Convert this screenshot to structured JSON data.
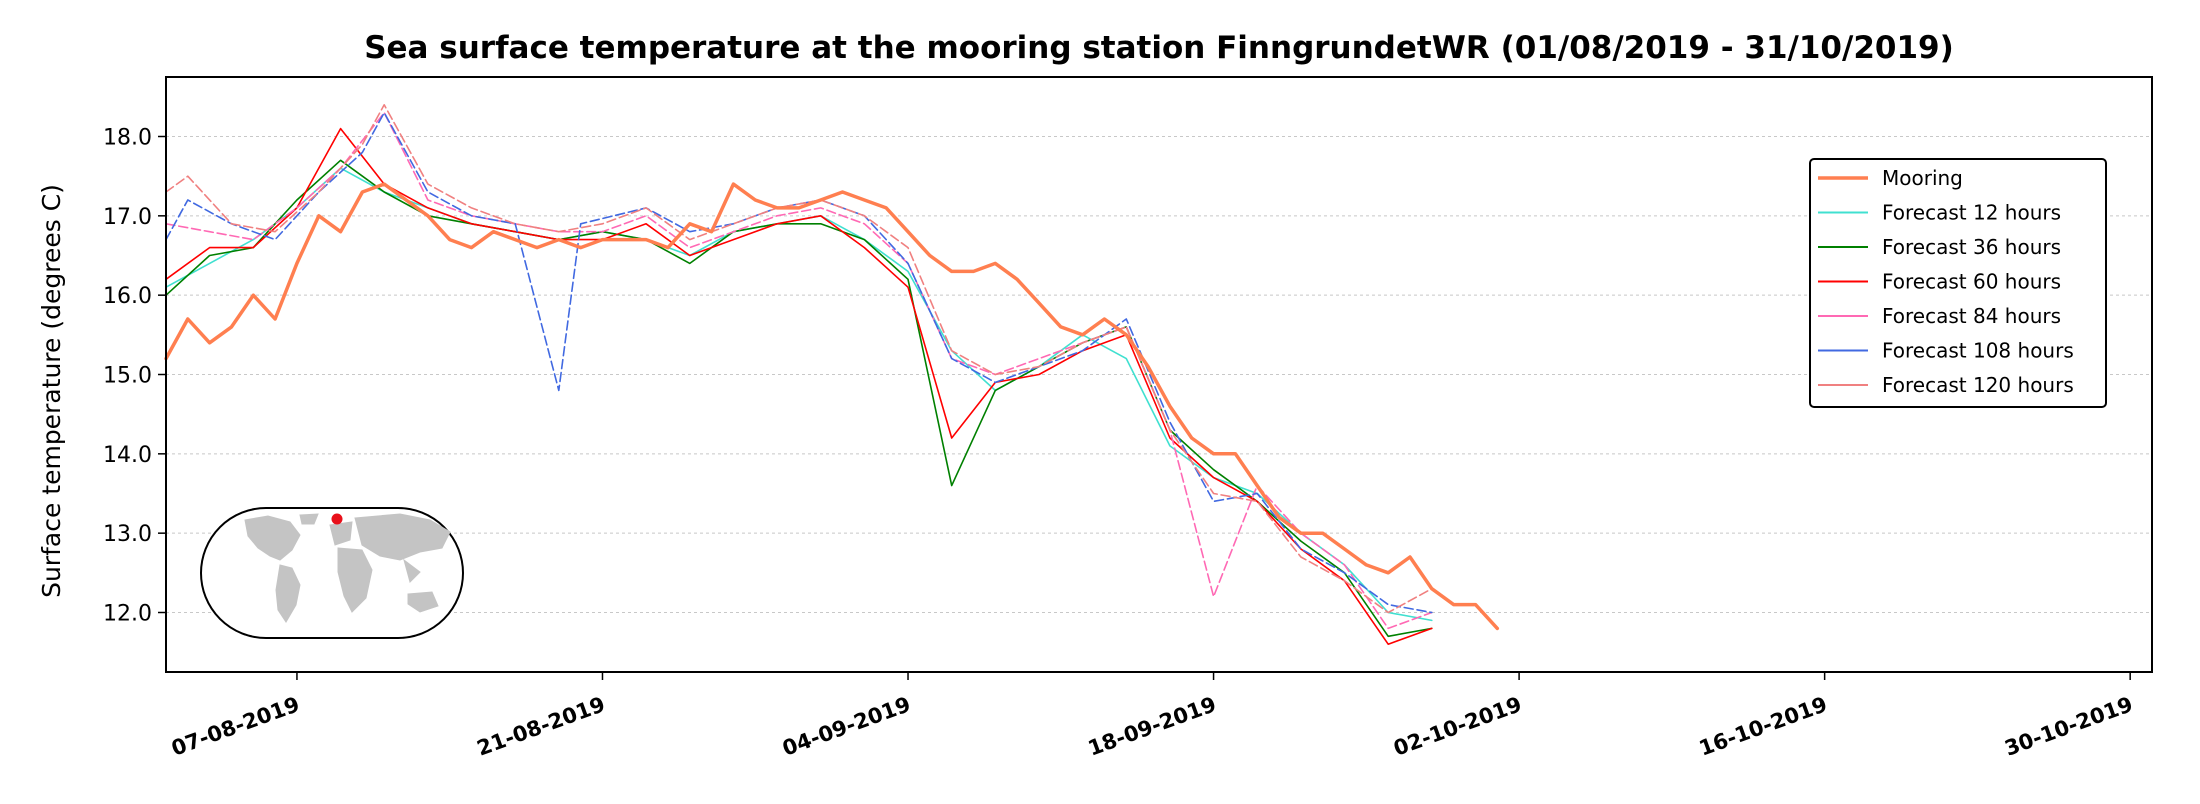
{
  "chart_data": {
    "type": "line",
    "title": "Sea surface temperature at the mooring station FinngrundetWR (01/08/2019 - 31/10/2019)",
    "xlabel": "",
    "ylabel": "Surface temperature (degrees C)",
    "xlim": [
      "2019-08-01",
      "2019-10-31"
    ],
    "ylim": [
      11.25,
      18.75
    ],
    "x_ticks": [
      "07-08-2019",
      "21-08-2019",
      "04-09-2019",
      "18-09-2019",
      "02-10-2019",
      "16-10-2019",
      "30-10-2019"
    ],
    "y_ticks": [
      "12.0",
      "13.0",
      "14.0",
      "15.0",
      "16.0",
      "17.0",
      "18.0"
    ],
    "grid": "horizontal dotted",
    "legend_position": "upper right",
    "inset": "world map with red station marker",
    "series": [
      {
        "name": "Mooring",
        "color": "#ff7f50",
        "style": "solid-thick",
        "points": [
          [
            "2019-08-01",
            15.2
          ],
          [
            "2019-08-02",
            15.7
          ],
          [
            "2019-08-03",
            15.4
          ],
          [
            "2019-08-04",
            15.6
          ],
          [
            "2019-08-05",
            16.0
          ],
          [
            "2019-08-06",
            15.7
          ],
          [
            "2019-08-07",
            16.4
          ],
          [
            "2019-08-08",
            17.0
          ],
          [
            "2019-08-09",
            16.8
          ],
          [
            "2019-08-10",
            17.3
          ],
          [
            "2019-08-11",
            17.4
          ],
          [
            "2019-08-12",
            17.2
          ],
          [
            "2019-08-13",
            17.0
          ],
          [
            "2019-08-14",
            16.7
          ],
          [
            "2019-08-15",
            16.6
          ],
          [
            "2019-08-16",
            16.8
          ],
          [
            "2019-08-17",
            16.7
          ],
          [
            "2019-08-18",
            16.6
          ],
          [
            "2019-08-19",
            16.7
          ],
          [
            "2019-08-20",
            16.6
          ],
          [
            "2019-08-21",
            16.7
          ],
          [
            "2019-08-22",
            16.7
          ],
          [
            "2019-08-23",
            16.7
          ],
          [
            "2019-08-24",
            16.6
          ],
          [
            "2019-08-25",
            16.9
          ],
          [
            "2019-08-26",
            16.8
          ],
          [
            "2019-08-27",
            17.4
          ],
          [
            "2019-08-28",
            17.2
          ],
          [
            "2019-08-29",
            17.1
          ],
          [
            "2019-08-30",
            17.1
          ],
          [
            "2019-08-31",
            17.2
          ],
          [
            "2019-09-01",
            17.3
          ],
          [
            "2019-09-02",
            17.2
          ],
          [
            "2019-09-03",
            17.1
          ],
          [
            "2019-09-04",
            16.8
          ],
          [
            "2019-09-05",
            16.5
          ],
          [
            "2019-09-06",
            16.3
          ],
          [
            "2019-09-07",
            16.3
          ],
          [
            "2019-09-08",
            16.4
          ],
          [
            "2019-09-09",
            16.2
          ],
          [
            "2019-09-10",
            15.9
          ],
          [
            "2019-09-11",
            15.6
          ],
          [
            "2019-09-12",
            15.5
          ],
          [
            "2019-09-13",
            15.7
          ],
          [
            "2019-09-14",
            15.5
          ],
          [
            "2019-09-15",
            15.1
          ],
          [
            "2019-09-16",
            14.6
          ],
          [
            "2019-09-17",
            14.2
          ],
          [
            "2019-09-18",
            14.0
          ],
          [
            "2019-09-19",
            14.0
          ],
          [
            "2019-09-20",
            13.6
          ],
          [
            "2019-09-21",
            13.2
          ],
          [
            "2019-09-22",
            13.0
          ],
          [
            "2019-09-23",
            13.0
          ],
          [
            "2019-09-24",
            12.8
          ],
          [
            "2019-09-25",
            12.6
          ],
          [
            "2019-09-26",
            12.5
          ],
          [
            "2019-09-27",
            12.7
          ],
          [
            "2019-09-28",
            12.3
          ],
          [
            "2019-09-29",
            12.1
          ],
          [
            "2019-09-30",
            12.1
          ],
          [
            "2019-10-01",
            11.8
          ]
        ]
      },
      {
        "name": "Forecast 12 hours",
        "color": "#40e0d0",
        "style": "thin",
        "points": [
          [
            "2019-08-01",
            16.1
          ],
          [
            "2019-08-03",
            16.4
          ],
          [
            "2019-08-05",
            16.7
          ],
          [
            "2019-08-07",
            17.1
          ],
          [
            "2019-08-09",
            17.6
          ],
          [
            "2019-08-11",
            17.3
          ],
          [
            "2019-08-13",
            17.1
          ],
          [
            "2019-08-15",
            16.9
          ],
          [
            "2019-08-17",
            16.8
          ],
          [
            "2019-08-19",
            16.7
          ],
          [
            "2019-08-21",
            16.8
          ],
          [
            "2019-08-23",
            16.7
          ],
          [
            "2019-08-25",
            16.5
          ],
          [
            "2019-08-27",
            16.8
          ],
          [
            "2019-08-29",
            16.9
          ],
          [
            "2019-08-31",
            17.0
          ],
          [
            "2019-09-02",
            16.7
          ],
          [
            "2019-09-04",
            16.3
          ],
          [
            "2019-09-06",
            15.3
          ],
          [
            "2019-09-08",
            14.8
          ],
          [
            "2019-09-10",
            15.1
          ],
          [
            "2019-09-12",
            15.5
          ],
          [
            "2019-09-14",
            15.2
          ],
          [
            "2019-09-16",
            14.1
          ],
          [
            "2019-09-18",
            13.7
          ],
          [
            "2019-09-20",
            13.5
          ],
          [
            "2019-09-22",
            13.0
          ],
          [
            "2019-09-24",
            12.6
          ],
          [
            "2019-09-26",
            12.0
          ],
          [
            "2019-09-28",
            11.9
          ]
        ]
      },
      {
        "name": "Forecast 36 hours",
        "color": "#008000",
        "style": "thin",
        "points": [
          [
            "2019-08-01",
            16.0
          ],
          [
            "2019-08-03",
            16.5
          ],
          [
            "2019-08-05",
            16.6
          ],
          [
            "2019-08-07",
            17.2
          ],
          [
            "2019-08-09",
            17.7
          ],
          [
            "2019-08-11",
            17.3
          ],
          [
            "2019-08-13",
            17.0
          ],
          [
            "2019-08-15",
            16.9
          ],
          [
            "2019-08-17",
            16.8
          ],
          [
            "2019-08-19",
            16.7
          ],
          [
            "2019-08-21",
            16.8
          ],
          [
            "2019-08-23",
            16.7
          ],
          [
            "2019-08-25",
            16.4
          ],
          [
            "2019-08-27",
            16.8
          ],
          [
            "2019-08-29",
            16.9
          ],
          [
            "2019-08-31",
            16.9
          ],
          [
            "2019-09-02",
            16.7
          ],
          [
            "2019-09-04",
            16.2
          ],
          [
            "2019-09-06",
            13.6
          ],
          [
            "2019-09-08",
            14.8
          ],
          [
            "2019-09-10",
            15.1
          ],
          [
            "2019-09-12",
            15.4
          ],
          [
            "2019-09-14",
            15.6
          ],
          [
            "2019-09-16",
            14.3
          ],
          [
            "2019-09-18",
            13.8
          ],
          [
            "2019-09-20",
            13.4
          ],
          [
            "2019-09-22",
            12.9
          ],
          [
            "2019-09-24",
            12.5
          ],
          [
            "2019-09-26",
            11.7
          ],
          [
            "2019-09-28",
            11.8
          ]
        ]
      },
      {
        "name": "Forecast 60 hours",
        "color": "#ff0000",
        "style": "thin",
        "points": [
          [
            "2019-08-01",
            16.2
          ],
          [
            "2019-08-03",
            16.6
          ],
          [
            "2019-08-05",
            16.6
          ],
          [
            "2019-08-07",
            17.1
          ],
          [
            "2019-08-09",
            18.1
          ],
          [
            "2019-08-11",
            17.4
          ],
          [
            "2019-08-13",
            17.1
          ],
          [
            "2019-08-15",
            16.9
          ],
          [
            "2019-08-17",
            16.8
          ],
          [
            "2019-08-19",
            16.7
          ],
          [
            "2019-08-21",
            16.7
          ],
          [
            "2019-08-23",
            16.9
          ],
          [
            "2019-08-25",
            16.5
          ],
          [
            "2019-08-27",
            16.7
          ],
          [
            "2019-08-29",
            16.9
          ],
          [
            "2019-08-31",
            17.0
          ],
          [
            "2019-09-02",
            16.6
          ],
          [
            "2019-09-04",
            16.1
          ],
          [
            "2019-09-06",
            14.2
          ],
          [
            "2019-09-08",
            14.9
          ],
          [
            "2019-09-10",
            15.0
          ],
          [
            "2019-09-12",
            15.3
          ],
          [
            "2019-09-14",
            15.5
          ],
          [
            "2019-09-16",
            14.2
          ],
          [
            "2019-09-18",
            13.7
          ],
          [
            "2019-09-20",
            13.4
          ],
          [
            "2019-09-22",
            12.8
          ],
          [
            "2019-09-24",
            12.4
          ],
          [
            "2019-09-26",
            11.6
          ],
          [
            "2019-09-28",
            11.8
          ]
        ]
      },
      {
        "name": "Forecast 84 hours",
        "color": "#ff69b4",
        "style": "thin-dashed",
        "points": [
          [
            "2019-08-01",
            16.9
          ],
          [
            "2019-08-03",
            16.8
          ],
          [
            "2019-08-05",
            16.7
          ],
          [
            "2019-08-07",
            17.1
          ],
          [
            "2019-08-09",
            17.6
          ],
          [
            "2019-08-11",
            18.3
          ],
          [
            "2019-08-13",
            17.2
          ],
          [
            "2019-08-15",
            17.0
          ],
          [
            "2019-08-17",
            16.9
          ],
          [
            "2019-08-19",
            16.8
          ],
          [
            "2019-08-21",
            16.8
          ],
          [
            "2019-08-23",
            17.0
          ],
          [
            "2019-08-25",
            16.6
          ],
          [
            "2019-08-27",
            16.8
          ],
          [
            "2019-08-29",
            17.0
          ],
          [
            "2019-08-31",
            17.1
          ],
          [
            "2019-09-02",
            16.9
          ],
          [
            "2019-09-04",
            16.4
          ],
          [
            "2019-09-06",
            15.2
          ],
          [
            "2019-09-08",
            15.0
          ],
          [
            "2019-09-10",
            15.2
          ],
          [
            "2019-09-12",
            15.4
          ],
          [
            "2019-09-14",
            15.6
          ],
          [
            "2019-09-16",
            14.3
          ],
          [
            "2019-09-18",
            12.2
          ],
          [
            "2019-09-20",
            13.6
          ],
          [
            "2019-09-22",
            13.0
          ],
          [
            "2019-09-24",
            12.6
          ],
          [
            "2019-09-26",
            11.8
          ],
          [
            "2019-09-28",
            12.0
          ]
        ]
      },
      {
        "name": "Forecast 108 hours",
        "color": "#4169e1",
        "style": "thin-dashed",
        "points": [
          [
            "2019-08-01",
            16.7
          ],
          [
            "2019-08-02",
            17.2
          ],
          [
            "2019-08-04",
            16.9
          ],
          [
            "2019-08-06",
            16.7
          ],
          [
            "2019-08-08",
            17.3
          ],
          [
            "2019-08-10",
            17.8
          ],
          [
            "2019-08-11",
            18.3
          ],
          [
            "2019-08-13",
            17.3
          ],
          [
            "2019-08-15",
            17.0
          ],
          [
            "2019-08-17",
            16.9
          ],
          [
            "2019-08-19",
            14.8
          ],
          [
            "2019-08-20",
            16.9
          ],
          [
            "2019-08-23",
            17.1
          ],
          [
            "2019-08-25",
            16.8
          ],
          [
            "2019-08-27",
            16.9
          ],
          [
            "2019-08-29",
            17.1
          ],
          [
            "2019-08-31",
            17.2
          ],
          [
            "2019-09-02",
            17.0
          ],
          [
            "2019-09-04",
            16.4
          ],
          [
            "2019-09-06",
            15.2
          ],
          [
            "2019-09-08",
            14.9
          ],
          [
            "2019-09-10",
            15.1
          ],
          [
            "2019-09-12",
            15.3
          ],
          [
            "2019-09-14",
            15.7
          ],
          [
            "2019-09-16",
            14.4
          ],
          [
            "2019-09-18",
            13.4
          ],
          [
            "2019-09-20",
            13.5
          ],
          [
            "2019-09-22",
            12.8
          ],
          [
            "2019-09-24",
            12.5
          ],
          [
            "2019-09-26",
            12.1
          ],
          [
            "2019-09-28",
            12.0
          ]
        ]
      },
      {
        "name": "Forecast 120 hours",
        "color": "#f08080",
        "style": "thin-dashed",
        "points": [
          [
            "2019-08-01",
            17.3
          ],
          [
            "2019-08-02",
            17.5
          ],
          [
            "2019-08-04",
            16.9
          ],
          [
            "2019-08-06",
            16.8
          ],
          [
            "2019-08-08",
            17.3
          ],
          [
            "2019-08-10",
            17.9
          ],
          [
            "2019-08-11",
            18.4
          ],
          [
            "2019-08-13",
            17.4
          ],
          [
            "2019-08-15",
            17.1
          ],
          [
            "2019-08-17",
            16.9
          ],
          [
            "2019-08-19",
            16.8
          ],
          [
            "2019-08-21",
            16.9
          ],
          [
            "2019-08-23",
            17.1
          ],
          [
            "2019-08-25",
            16.7
          ],
          [
            "2019-08-27",
            16.9
          ],
          [
            "2019-08-29",
            17.1
          ],
          [
            "2019-08-31",
            17.2
          ],
          [
            "2019-09-02",
            17.0
          ],
          [
            "2019-09-04",
            16.6
          ],
          [
            "2019-09-06",
            15.3
          ],
          [
            "2019-09-08",
            15.0
          ],
          [
            "2019-09-10",
            15.1
          ],
          [
            "2019-09-12",
            15.4
          ],
          [
            "2019-09-14",
            15.6
          ],
          [
            "2019-09-16",
            14.3
          ],
          [
            "2019-09-18",
            13.5
          ],
          [
            "2019-09-20",
            13.4
          ],
          [
            "2019-09-22",
            12.7
          ],
          [
            "2019-09-24",
            12.4
          ],
          [
            "2019-09-26",
            12.0
          ],
          [
            "2019-09-28",
            12.3
          ]
        ]
      }
    ]
  }
}
